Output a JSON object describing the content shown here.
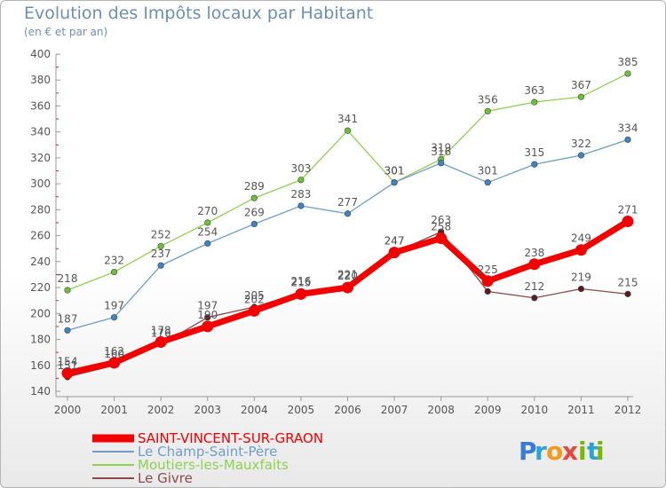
{
  "header": {
    "title": "Evolution des Impôts locaux par Habitant",
    "subtitle": "(en € et par an)"
  },
  "brand": {
    "letters": [
      "P",
      "r",
      "o",
      "x",
      "i",
      "t",
      "i"
    ],
    "colors": [
      "#3a7bd5",
      "#2aa3d8",
      "#f29a1a",
      "#e8473b",
      "#7ab800",
      "#2aa3d8",
      "#7ab800"
    ]
  },
  "chart_data": {
    "type": "line",
    "title": "Evolution des Impôts locaux par Habitant",
    "subtitle": "(en € et par an)",
    "x": [
      "2000",
      "2001",
      "2002",
      "2003",
      "2004",
      "2005",
      "2006",
      "2007",
      "2008",
      "2009",
      "2010",
      "2011",
      "2012"
    ],
    "ylim": [
      140,
      400
    ],
    "yticks": [
      140,
      160,
      180,
      200,
      220,
      240,
      260,
      280,
      300,
      320,
      340,
      360,
      380,
      400
    ],
    "grid": false,
    "legend_position": "bottom-left",
    "series": [
      {
        "name": "Moutiers-les-Mauxfaits",
        "color": "#8fd14f",
        "marker": "#6cc13a",
        "width": 1.3,
        "values": [
          218,
          232,
          252,
          270,
          289,
          303,
          341,
          301,
          319,
          356,
          363,
          367,
          385
        ],
        "labels": [
          "218",
          "232",
          "252",
          "270",
          "289",
          "303",
          "341",
          "301",
          "319",
          "356",
          "363",
          "367",
          "385"
        ]
      },
      {
        "name": "Le Champ-Saint-Père",
        "color": "#6d9ec9",
        "marker": "#3d84c6",
        "width": 1.3,
        "values": [
          187,
          197,
          237,
          254,
          269,
          283,
          277,
          301,
          316,
          301,
          315,
          322,
          334
        ],
        "labels": [
          "187",
          "197",
          "237",
          "254",
          "269",
          "283",
          "277",
          "301",
          "316",
          "301",
          "315",
          "322",
          "334"
        ]
      },
      {
        "name": "Le Givre",
        "color": "#8b4a4a",
        "marker": "#5c1b1b",
        "width": 1.3,
        "values": [
          151,
          160,
          176,
          197,
          205,
          216,
          221,
          247,
          263,
          217,
          212,
          219,
          215
        ],
        "labels": [
          "151",
          "160",
          "176",
          "197",
          "205",
          "216",
          "221",
          "247",
          "263",
          "",
          "212",
          "219",
          "215"
        ]
      },
      {
        "name": "SAINT-VINCENT-SUR-GRAON",
        "color": "#f20000",
        "marker": "#f20000",
        "width": 7,
        "values": [
          154,
          162,
          178,
          190,
          202,
          215,
          220,
          247,
          258,
          225,
          238,
          249,
          271
        ],
        "labels": [
          "154",
          "162",
          "178",
          "190",
          "202",
          "215",
          "220",
          "247",
          "258",
          "225",
          "238",
          "249",
          "271"
        ]
      }
    ],
    "legend": [
      {
        "name": "SAINT-VINCENT-SUR-GRAON",
        "color": "#f20000",
        "width": 9
      },
      {
        "name": "Le Champ-Saint-Père",
        "color": "#6d9ec9",
        "width": 2
      },
      {
        "name": "Moutiers-les-Mauxfaits",
        "color": "#8fd14f",
        "width": 2
      },
      {
        "name": "Le Givre",
        "color": "#8b4a4a",
        "width": 2
      }
    ]
  }
}
